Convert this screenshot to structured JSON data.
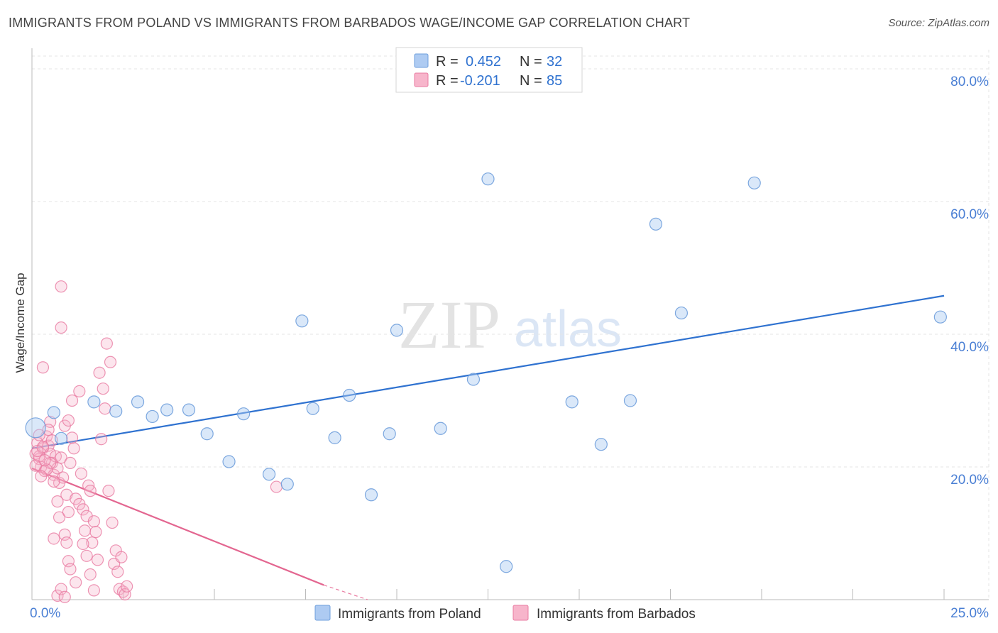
{
  "header": {
    "title": "IMMIGRANTS FROM POLAND VS IMMIGRANTS FROM BARBADOS WAGE/INCOME GAP CORRELATION CHART",
    "source": "Source: ZipAtlas.com"
  },
  "watermark": {
    "zip": "ZIP",
    "atlas": "atlas"
  },
  "chart_data": {
    "type": "scatter",
    "title": "IMMIGRANTS FROM POLAND VS IMMIGRANTS FROM BARBADOS WAGE/INCOME GAP CORRELATION CHART",
    "xlabel": "",
    "ylabel": "Wage/Income Gap",
    "xlim": [
      0,
      25
    ],
    "ylim": [
      0,
      80
    ],
    "x_tick_labels": [
      {
        "value": 0,
        "label": "0.0%"
      },
      {
        "value": 25,
        "label": "25.0%"
      }
    ],
    "y_tick_labels": [
      {
        "value": 20,
        "label": "20.0%"
      },
      {
        "value": 40,
        "label": "40.0%"
      },
      {
        "value": 60,
        "label": "60.0%"
      },
      {
        "value": 80,
        "label": "80.0%"
      }
    ],
    "legend": [
      {
        "name": "Immigrants from Poland",
        "r_label": "R =",
        "r_value": "0.452",
        "n_label": "N =",
        "n_value": "32"
      },
      {
        "name": "Immigrants from Barbados",
        "r_label": "R =",
        "r_value": "-0.201",
        "n_label": "N =",
        "n_value": "85"
      }
    ],
    "colors": {
      "poland_fill": "#aecbf2",
      "poland_stroke": "#6f9fdc",
      "poland_line": "#2f72d0",
      "barbados_fill": "#f7b5cb",
      "barbados_stroke": "#e97ba1",
      "barbados_line": "#e36690",
      "tick_text": "#4a7fd4"
    },
    "series": [
      {
        "name": "Immigrants from Poland",
        "trend": {
          "x0": 0,
          "y0": 22.8,
          "x1": 25,
          "y1": 45.8
        },
        "points": [
          [
            0.1,
            25.9
          ],
          [
            0.6,
            28.2
          ],
          [
            0.8,
            24.3
          ],
          [
            1.7,
            29.8
          ],
          [
            2.3,
            28.4
          ],
          [
            2.9,
            29.8
          ],
          [
            3.3,
            27.6
          ],
          [
            3.7,
            28.6
          ],
          [
            4.3,
            28.6
          ],
          [
            4.8,
            25.0
          ],
          [
            5.4,
            20.8
          ],
          [
            5.8,
            28.0
          ],
          [
            6.5,
            18.9
          ],
          [
            7.0,
            17.4
          ],
          [
            7.4,
            42.0
          ],
          [
            7.7,
            28.8
          ],
          [
            8.3,
            24.4
          ],
          [
            8.7,
            30.8
          ],
          [
            9.3,
            15.8
          ],
          [
            9.8,
            25.0
          ],
          [
            10.0,
            40.6
          ],
          [
            11.2,
            25.8
          ],
          [
            12.1,
            33.2
          ],
          [
            12.5,
            63.4
          ],
          [
            13.0,
            5.0
          ],
          [
            14.8,
            29.8
          ],
          [
            15.6,
            23.4
          ],
          [
            16.4,
            30.0
          ],
          [
            17.1,
            56.6
          ],
          [
            17.8,
            43.2
          ],
          [
            19.8,
            62.8
          ],
          [
            24.9,
            42.6
          ]
        ]
      },
      {
        "name": "Immigrants from Barbados",
        "trend": {
          "x0": 0,
          "y0": 19.8,
          "x1": 8.0,
          "y1": 2.2
        },
        "trend_dashed": {
          "x0": 8.0,
          "y0": 2.2,
          "x1": 9.2,
          "y1": -0.4
        },
        "points": [
          [
            0.1,
            22.0
          ],
          [
            0.15,
            23.6
          ],
          [
            0.2,
            21.2
          ],
          [
            0.25,
            20.0
          ],
          [
            0.3,
            22.8
          ],
          [
            0.35,
            19.4
          ],
          [
            0.4,
            24.6
          ],
          [
            0.45,
            23.2
          ],
          [
            0.5,
            22.0
          ],
          [
            0.55,
            20.6
          ],
          [
            0.6,
            18.8
          ],
          [
            0.65,
            21.6
          ],
          [
            0.7,
            19.8
          ],
          [
            0.75,
            17.6
          ],
          [
            0.8,
            21.4
          ],
          [
            0.85,
            18.4
          ],
          [
            0.9,
            26.2
          ],
          [
            0.95,
            15.8
          ],
          [
            1.0,
            27.0
          ],
          [
            1.05,
            20.6
          ],
          [
            1.1,
            24.4
          ],
          [
            1.15,
            22.8
          ],
          [
            1.2,
            15.2
          ],
          [
            1.3,
            14.4
          ],
          [
            1.35,
            19.0
          ],
          [
            1.4,
            13.6
          ],
          [
            1.45,
            10.4
          ],
          [
            1.5,
            12.6
          ],
          [
            1.55,
            17.2
          ],
          [
            1.6,
            16.4
          ],
          [
            1.65,
            8.6
          ],
          [
            1.7,
            11.8
          ],
          [
            1.75,
            10.2
          ],
          [
            1.8,
            6.0
          ],
          [
            1.85,
            34.2
          ],
          [
            1.9,
            24.2
          ],
          [
            1.95,
            31.8
          ],
          [
            2.0,
            28.8
          ],
          [
            2.05,
            38.6
          ],
          [
            2.1,
            16.4
          ],
          [
            2.15,
            35.8
          ],
          [
            2.2,
            11.6
          ],
          [
            2.25,
            5.4
          ],
          [
            2.3,
            7.4
          ],
          [
            2.35,
            4.2
          ],
          [
            2.4,
            1.6
          ],
          [
            2.45,
            6.4
          ],
          [
            2.5,
            1.2
          ],
          [
            2.55,
            0.8
          ],
          [
            2.6,
            2.0
          ],
          [
            0.3,
            35.0
          ],
          [
            0.8,
            47.2
          ],
          [
            0.8,
            41.0
          ],
          [
            1.1,
            30.0
          ],
          [
            1.3,
            31.4
          ],
          [
            0.5,
            20.6
          ],
          [
            0.6,
            17.8
          ],
          [
            0.7,
            14.8
          ],
          [
            0.75,
            12.4
          ],
          [
            0.9,
            9.8
          ],
          [
            0.95,
            8.6
          ],
          [
            1.0,
            5.8
          ],
          [
            1.05,
            4.6
          ],
          [
            1.2,
            2.6
          ],
          [
            0.2,
            21.6
          ],
          [
            0.3,
            23.0
          ],
          [
            0.4,
            19.6
          ],
          [
            0.5,
            26.8
          ],
          [
            0.55,
            24.0
          ],
          [
            1.4,
            8.4
          ],
          [
            1.5,
            6.6
          ],
          [
            1.6,
            3.8
          ],
          [
            1.7,
            1.4
          ],
          [
            6.7,
            17.0
          ],
          [
            0.1,
            20.2
          ],
          [
            0.15,
            22.4
          ],
          [
            0.2,
            24.8
          ],
          [
            0.25,
            18.6
          ],
          [
            0.35,
            21.0
          ],
          [
            0.45,
            25.6
          ],
          [
            0.6,
            9.2
          ],
          [
            0.7,
            0.6
          ],
          [
            0.8,
            1.6
          ],
          [
            0.9,
            0.4
          ],
          [
            1.0,
            13.2
          ]
        ]
      }
    ]
  },
  "bottom_legend": {
    "poland": "Immigrants from Poland",
    "barbados": "Immigrants from Barbados"
  }
}
